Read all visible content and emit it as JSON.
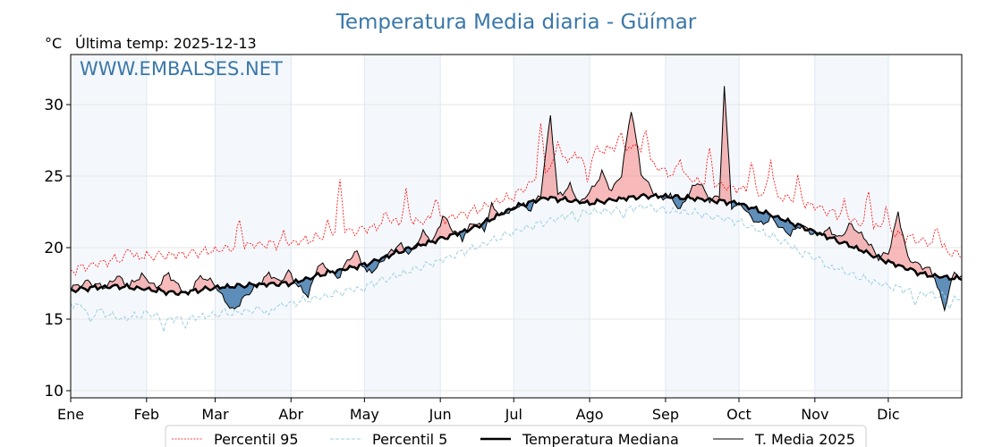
{
  "chart_data": {
    "type": "line",
    "title": "Temperatura Media diaria - Güímar",
    "unit_label": "°C",
    "last_temp_label": "Última temp: 2025-12-13",
    "watermark": "WWW.EMBALSES.NET",
    "ylim": [
      9.5,
      33.5
    ],
    "yticks": [
      10,
      15,
      20,
      25,
      30
    ],
    "months": [
      {
        "label": "Ene",
        "start_day": 1,
        "days": 31,
        "shaded": true
      },
      {
        "label": "Feb",
        "start_day": 32,
        "days": 28,
        "shaded": false
      },
      {
        "label": "Mar",
        "start_day": 60,
        "days": 31,
        "shaded": true
      },
      {
        "label": "Abr",
        "start_day": 91,
        "days": 30,
        "shaded": false
      },
      {
        "label": "May",
        "start_day": 121,
        "days": 31,
        "shaded": true
      },
      {
        "label": "Jun",
        "start_day": 152,
        "days": 30,
        "shaded": false
      },
      {
        "label": "Jul",
        "start_day": 182,
        "days": 31,
        "shaded": true
      },
      {
        "label": "Ago",
        "start_day": 213,
        "days": 31,
        "shaded": false
      },
      {
        "label": "Sep",
        "start_day": 244,
        "days": 30,
        "shaded": true
      },
      {
        "label": "Oct",
        "start_day": 274,
        "days": 31,
        "shaded": false
      },
      {
        "label": "Nov",
        "start_day": 305,
        "days": 30,
        "shaded": true
      },
      {
        "label": "Dic",
        "start_day": 335,
        "days": 31,
        "shaded": false
      }
    ],
    "grid": true,
    "legend_position": "bottom-center",
    "series": [
      {
        "name": "Percentil 95",
        "color": "#ff0000",
        "style": "dotted",
        "points": [
          [
            1,
            18.4
          ],
          [
            10,
            18.8
          ],
          [
            20,
            19.2
          ],
          [
            32,
            19.4
          ],
          [
            45,
            19.5
          ],
          [
            60,
            19.8
          ],
          [
            75,
            20.2
          ],
          [
            91,
            20.3
          ],
          [
            105,
            20.8
          ],
          [
            121,
            21.3
          ],
          [
            135,
            21.8
          ],
          [
            152,
            21.9
          ],
          [
            166,
            22.6
          ],
          [
            182,
            23.6
          ],
          [
            195,
            25.3
          ],
          [
            205,
            26.3
          ],
          [
            213,
            26.6
          ],
          [
            225,
            27.1
          ],
          [
            235,
            26.2
          ],
          [
            244,
            25.3
          ],
          [
            258,
            24.6
          ],
          [
            274,
            24.1
          ],
          [
            290,
            23.6
          ],
          [
            305,
            22.9
          ],
          [
            320,
            21.9
          ],
          [
            335,
            21.1
          ],
          [
            350,
            20.4
          ],
          [
            365,
            19.4
          ]
        ],
        "spikes": [
          [
            25,
            20.0
          ],
          [
            70,
            21.9
          ],
          [
            88,
            20.9
          ],
          [
            106,
            21.7
          ],
          [
            111,
            24.8
          ],
          [
            130,
            22.6
          ],
          [
            138,
            23.8
          ],
          [
            150,
            23.7
          ],
          [
            176,
            23.3
          ],
          [
            193,
            28.6
          ],
          [
            200,
            27.7
          ],
          [
            212,
            24.5
          ],
          [
            226,
            28.0
          ],
          [
            232,
            27.6
          ],
          [
            236,
            28.4
          ],
          [
            250,
            26.3
          ],
          [
            262,
            26.8
          ],
          [
            279,
            26.0
          ],
          [
            287,
            26.2
          ],
          [
            298,
            24.8
          ],
          [
            317,
            23.1
          ],
          [
            327,
            24.0
          ],
          [
            334,
            22.9
          ],
          [
            355,
            21.6
          ]
        ]
      },
      {
        "name": "Percentil 5",
        "color": "#9ccfe0",
        "style": "dashed",
        "points": [
          [
            1,
            16.1
          ],
          [
            12,
            15.6
          ],
          [
            22,
            15.0
          ],
          [
            32,
            15.4
          ],
          [
            45,
            15.0
          ],
          [
            60,
            15.3
          ],
          [
            75,
            15.6
          ],
          [
            91,
            16.1
          ],
          [
            105,
            16.6
          ],
          [
            121,
            17.3
          ],
          [
            135,
            18.1
          ],
          [
            152,
            19.1
          ],
          [
            166,
            20.0
          ],
          [
            182,
            21.1
          ],
          [
            195,
            21.8
          ],
          [
            205,
            22.3
          ],
          [
            213,
            22.5
          ],
          [
            225,
            22.6
          ],
          [
            235,
            22.9
          ],
          [
            244,
            22.6
          ],
          [
            258,
            22.4
          ],
          [
            274,
            21.8
          ],
          [
            290,
            20.6
          ],
          [
            305,
            19.3
          ],
          [
            320,
            18.1
          ],
          [
            335,
            17.3
          ],
          [
            350,
            16.8
          ],
          [
            365,
            16.4
          ]
        ],
        "spikes": [
          [
            9,
            14.7
          ],
          [
            39,
            14.3
          ],
          [
            48,
            14.6
          ],
          [
            63,
            15.5
          ],
          [
            82,
            15.2
          ],
          [
            120,
            17.0
          ],
          [
            168,
            20.1
          ],
          [
            208,
            22.0
          ],
          [
            227,
            22.3
          ],
          [
            262,
            22.1
          ],
          [
            299,
            19.5
          ],
          [
            311,
            18.5
          ],
          [
            346,
            16.1
          ],
          [
            360,
            15.9
          ]
        ]
      },
      {
        "name": "Temperatura Mediana",
        "color": "#000000",
        "style": "solid-thick",
        "points": [
          [
            1,
            17.0
          ],
          [
            10,
            17.2
          ],
          [
            20,
            17.3
          ],
          [
            32,
            17.1
          ],
          [
            45,
            16.8
          ],
          [
            60,
            17.2
          ],
          [
            75,
            17.4
          ],
          [
            91,
            17.5
          ],
          [
            105,
            18.2
          ],
          [
            121,
            18.8
          ],
          [
            135,
            19.7
          ],
          [
            152,
            20.6
          ],
          [
            166,
            21.4
          ],
          [
            182,
            22.8
          ],
          [
            195,
            23.5
          ],
          [
            205,
            23.3
          ],
          [
            213,
            23.1
          ],
          [
            225,
            23.4
          ],
          [
            235,
            23.6
          ],
          [
            244,
            23.6
          ],
          [
            258,
            23.4
          ],
          [
            274,
            23.1
          ],
          [
            290,
            22.1
          ],
          [
            305,
            21.1
          ],
          [
            320,
            20.1
          ],
          [
            335,
            19.0
          ],
          [
            350,
            18.1
          ],
          [
            365,
            17.8
          ]
        ]
      },
      {
        "name": "T. Media 2025",
        "color": "#000000",
        "style": "solid",
        "points": [
          [
            1,
            17.2
          ],
          [
            8,
            17.6
          ],
          [
            12,
            17.4
          ],
          [
            15,
            17.2
          ],
          [
            20,
            18.0
          ],
          [
            25,
            17.3
          ],
          [
            30,
            18.1
          ],
          [
            36,
            17.2
          ],
          [
            41,
            18.2
          ],
          [
            44,
            17.5
          ],
          [
            49,
            16.6
          ],
          [
            52,
            17.6
          ],
          [
            55,
            18.0
          ],
          [
            60,
            17.4
          ],
          [
            64,
            16.3
          ],
          [
            67,
            15.6
          ],
          [
            70,
            16.1
          ],
          [
            74,
            16.9
          ],
          [
            78,
            17.5
          ],
          [
            82,
            18.2
          ],
          [
            86,
            17.6
          ],
          [
            90,
            18.3
          ],
          [
            94,
            17.3
          ],
          [
            98,
            16.6
          ],
          [
            102,
            18.8
          ],
          [
            106,
            18.6
          ],
          [
            110,
            17.8
          ],
          [
            114,
            19.1
          ],
          [
            118,
            19.7
          ],
          [
            122,
            18.2
          ],
          [
            126,
            18.6
          ],
          [
            131,
            19.6
          ],
          [
            135,
            20.2
          ],
          [
            140,
            19.6
          ],
          [
            145,
            21.1
          ],
          [
            149,
            20.4
          ],
          [
            153,
            22.2
          ],
          [
            157,
            21.3
          ],
          [
            161,
            20.6
          ],
          [
            165,
            21.8
          ],
          [
            170,
            21.3
          ],
          [
            173,
            22.9
          ],
          [
            177,
            22.3
          ],
          [
            181,
            22.6
          ],
          [
            185,
            23.1
          ],
          [
            188,
            22.6
          ],
          [
            193,
            23.7
          ],
          [
            197,
            29.3
          ],
          [
            200,
            23.6
          ],
          [
            205,
            24.3
          ],
          [
            209,
            23.1
          ],
          [
            214,
            24.1
          ],
          [
            218,
            25.2
          ],
          [
            222,
            24.0
          ],
          [
            226,
            25.1
          ],
          [
            230,
            29.7
          ],
          [
            234,
            25.3
          ],
          [
            238,
            24.1
          ],
          [
            242,
            23.4
          ],
          [
            246,
            23.6
          ],
          [
            250,
            22.6
          ],
          [
            254,
            24.0
          ],
          [
            258,
            24.6
          ],
          [
            262,
            23.3
          ],
          [
            266,
            23.6
          ],
          [
            268,
            31.2
          ],
          [
            271,
            22.9
          ],
          [
            275,
            23.0
          ],
          [
            279,
            22.1
          ],
          [
            283,
            21.6
          ],
          [
            287,
            22.1
          ],
          [
            291,
            21.4
          ],
          [
            295,
            20.9
          ],
          [
            299,
            21.6
          ],
          [
            303,
            21.1
          ],
          [
            307,
            20.9
          ],
          [
            311,
            21.3
          ],
          [
            315,
            20.6
          ],
          [
            319,
            21.6
          ],
          [
            323,
            21.1
          ],
          [
            327,
            20.3
          ],
          [
            331,
            19.3
          ],
          [
            335,
            19.6
          ],
          [
            339,
            22.4
          ],
          [
            343,
            19.3
          ],
          [
            347,
            18.8
          ],
          [
            351,
            18.6
          ],
          [
            354,
            17.9
          ],
          [
            358,
            15.7
          ],
          [
            362,
            18.4
          ],
          [
            365,
            17.8
          ]
        ]
      }
    ]
  }
}
